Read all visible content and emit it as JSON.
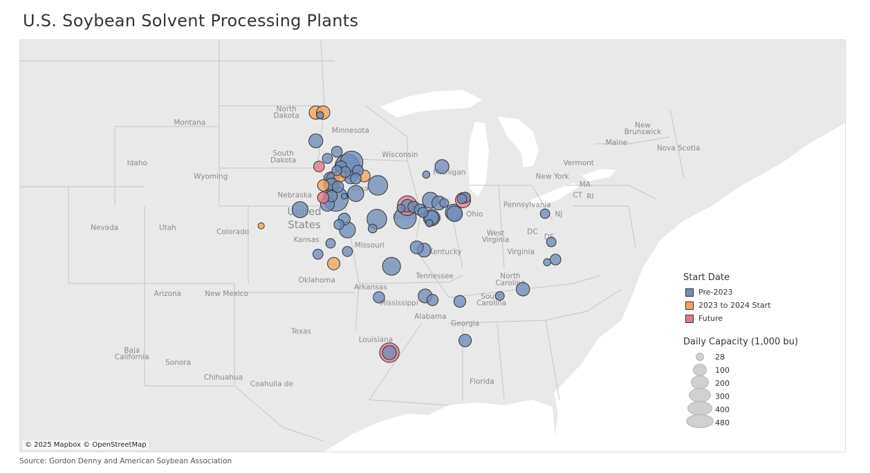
{
  "title": "U.S. Soybean Solvent Processing Plants",
  "source": "Source: Gordon Denny and American Soybean Association",
  "attribution": "© 2025 Mapbox © OpenStreetMap",
  "colors": {
    "pre2023": "#6f8db8",
    "start2023_2024": "#f3a45a",
    "future": "#e47a86",
    "land": "#e9e9e9",
    "water": "#ffffff",
    "border": "#c4c4c4"
  },
  "legend": {
    "color_title": "Start Date",
    "categories": [
      {
        "key": "pre2023",
        "label": "Pre-2023"
      },
      {
        "key": "start2023_2024",
        "label": "2023 to 2024 Start"
      },
      {
        "key": "future",
        "label": "Future"
      }
    ],
    "size_title": "Daily Capacity (1,000 bu)",
    "size_values": [
      "28",
      "100",
      "200",
      "300",
      "400",
      "480"
    ]
  },
  "map_labels": [
    {
      "text": "North",
      "lon": -100.4,
      "lat": 48.0
    },
    {
      "text": "Dakota",
      "lon": -100.4,
      "lat": 47.5
    },
    {
      "text": "Montana",
      "lon": -109.6,
      "lat": 47.0
    },
    {
      "text": "Minnesota",
      "lon": -94.3,
      "lat": 46.4
    },
    {
      "text": "South",
      "lon": -100.7,
      "lat": 44.7
    },
    {
      "text": "Dakota",
      "lon": -100.7,
      "lat": 44.2
    },
    {
      "text": "Wisconsin",
      "lon": -89.6,
      "lat": 44.6
    },
    {
      "text": "Idaho",
      "lon": -114.6,
      "lat": 44.0
    },
    {
      "text": "Wyoming",
      "lon": -107.6,
      "lat": 43.0
    },
    {
      "text": "Michigan",
      "lon": -84.9,
      "lat": 43.3
    },
    {
      "text": "Vermont",
      "lon": -72.6,
      "lat": 44.0
    },
    {
      "text": "New York",
      "lon": -75.1,
      "lat": 43.0
    },
    {
      "text": "Maine",
      "lon": -69.0,
      "lat": 45.5
    },
    {
      "text": "New",
      "lon": -66.5,
      "lat": 46.8
    },
    {
      "text": "Brunswick",
      "lon": -66.5,
      "lat": 46.3
    },
    {
      "text": "Nova Scotia",
      "lon": -63.1,
      "lat": 45.1
    },
    {
      "text": "MA",
      "lon": -72.0,
      "lat": 42.4
    },
    {
      "text": "CT",
      "lon": -72.7,
      "lat": 41.6
    },
    {
      "text": "RI",
      "lon": -71.5,
      "lat": 41.5
    },
    {
      "text": "Iowa",
      "lon": -93.4,
      "lat": 42.1
    },
    {
      "text": "Nebraska",
      "lon": -99.6,
      "lat": 41.6
    },
    {
      "text": "Pennsylvania",
      "lon": -77.5,
      "lat": 40.9
    },
    {
      "text": "NJ",
      "lon": -74.5,
      "lat": 40.2
    },
    {
      "text": "Ohio",
      "lon": -82.5,
      "lat": 40.2
    },
    {
      "text": "Illinois",
      "lon": -89.2,
      "lat": 40.0
    },
    {
      "text": "Ind",
      "lon": -86.2,
      "lat": 39.9
    },
    {
      "text": "Nevada",
      "lon": -117.7,
      "lat": 39.2
    },
    {
      "text": "Utah",
      "lon": -111.7,
      "lat": 39.2
    },
    {
      "text": "Colorado",
      "lon": -105.5,
      "lat": 38.9
    },
    {
      "text": "DC",
      "lon": -77.0,
      "lat": 38.9
    },
    {
      "text": "DE",
      "lon": -75.4,
      "lat": 38.5
    },
    {
      "text": "West",
      "lon": -80.5,
      "lat": 38.8
    },
    {
      "text": "Virginia",
      "lon": -80.5,
      "lat": 38.3
    },
    {
      "text": "Kansas",
      "lon": -98.5,
      "lat": 38.3
    },
    {
      "text": "Missouri",
      "lon": -92.5,
      "lat": 37.9
    },
    {
      "text": "Kentucky",
      "lon": -85.3,
      "lat": 37.4
    },
    {
      "text": "Virginia",
      "lon": -78.1,
      "lat": 37.4
    },
    {
      "text": "Tennessee",
      "lon": -86.3,
      "lat": 35.6
    },
    {
      "text": "North",
      "lon": -79.1,
      "lat": 35.6
    },
    {
      "text": "Carolina",
      "lon": -79.1,
      "lat": 35.1
    },
    {
      "text": "Oklahoma",
      "lon": -97.5,
      "lat": 35.3
    },
    {
      "text": "Arkansas",
      "lon": -92.4,
      "lat": 34.8
    },
    {
      "text": "South",
      "lon": -80.9,
      "lat": 34.1
    },
    {
      "text": "Carolina",
      "lon": -80.9,
      "lat": 33.6
    },
    {
      "text": "Arizona",
      "lon": -111.7,
      "lat": 34.3
    },
    {
      "text": "New Mexico",
      "lon": -106.1,
      "lat": 34.3
    },
    {
      "text": "Mississippi",
      "lon": -89.7,
      "lat": 33.6
    },
    {
      "text": "Alabama",
      "lon": -86.7,
      "lat": 32.6
    },
    {
      "text": "Georgia",
      "lon": -83.4,
      "lat": 32.1
    },
    {
      "text": "Texas",
      "lon": -99.0,
      "lat": 31.5
    },
    {
      "text": "Louisiana",
      "lon": -91.9,
      "lat": 30.9
    },
    {
      "text": "Baja",
      "lon": -115.1,
      "lat": 30.1
    },
    {
      "text": "California",
      "lon": -115.1,
      "lat": 29.6
    },
    {
      "text": "Sonora",
      "lon": -110.7,
      "lat": 29.2
    },
    {
      "text": "Chihuahua",
      "lon": -106.4,
      "lat": 28.1
    },
    {
      "text": "Coahuila de",
      "lon": -101.8,
      "lat": 27.6
    },
    {
      "text": "Florida",
      "lon": -81.8,
      "lat": 27.8
    }
  ],
  "country_label": {
    "line1": "United",
    "line2": "States",
    "lon": -98.7,
    "lat": 40.3
  },
  "plants": [
    {
      "lon": -97.6,
      "lat": 47.9,
      "cap": 140,
      "cat": "start2023_2024"
    },
    {
      "lon": -96.9,
      "lat": 47.9,
      "cap": 140,
      "cat": "start2023_2024"
    },
    {
      "lon": -97.2,
      "lat": 47.7,
      "cap": 40,
      "cat": "pre2023"
    },
    {
      "lon": -97.6,
      "lat": 45.8,
      "cap": 150,
      "cat": "pre2023"
    },
    {
      "lon": -95.6,
      "lat": 45.0,
      "cap": 90,
      "cat": "pre2023"
    },
    {
      "lon": -96.5,
      "lat": 44.5,
      "cap": 80,
      "cat": "pre2023"
    },
    {
      "lon": -97.3,
      "lat": 43.9,
      "cap": 90,
      "cat": "future"
    },
    {
      "lon": -94.2,
      "lat": 44.2,
      "cap": 400,
      "cat": "pre2023"
    },
    {
      "lon": -94.6,
      "lat": 43.9,
      "cap": 480,
      "cat": "pre2023"
    },
    {
      "lon": -95.2,
      "lat": 43.9,
      "cap": 100,
      "cat": "pre2023"
    },
    {
      "lon": -95.6,
      "lat": 43.6,
      "cap": 80,
      "cat": "pre2023"
    },
    {
      "lon": -94.8,
      "lat": 43.5,
      "cap": 90,
      "cat": "pre2023"
    },
    {
      "lon": -93.6,
      "lat": 43.6,
      "cap": 90,
      "cat": "pre2023"
    },
    {
      "lon": -95.3,
      "lat": 43.2,
      "cap": 110,
      "cat": "start2023_2024"
    },
    {
      "lon": -96.2,
      "lat": 43.0,
      "cap": 140,
      "cat": "pre2023"
    },
    {
      "lon": -96.0,
      "lat": 43.0,
      "cap": 120,
      "cat": "pre2023"
    },
    {
      "lon": -94.3,
      "lat": 43.1,
      "cap": 130,
      "cat": "pre2023"
    },
    {
      "lon": -93.8,
      "lat": 43.0,
      "cap": 90,
      "cat": "pre2023"
    },
    {
      "lon": -93.0,
      "lat": 43.2,
      "cap": 110,
      "cat": "start2023_2024"
    },
    {
      "lon": -96.9,
      "lat": 42.5,
      "cap": 100,
      "cat": "start2023_2024"
    },
    {
      "lon": -95.5,
      "lat": 42.4,
      "cap": 100,
      "cat": "pre2023"
    },
    {
      "lon": -91.7,
      "lat": 42.5,
      "cap": 300,
      "cat": "pre2023"
    },
    {
      "lon": -93.8,
      "lat": 41.9,
      "cap": 200,
      "cat": "pre2023"
    },
    {
      "lon": -94.9,
      "lat": 41.7,
      "cap": 28,
      "cat": "pre2023"
    },
    {
      "lon": -96.1,
      "lat": 41.7,
      "cap": 100,
      "cat": "pre2023"
    },
    {
      "lon": -95.7,
      "lat": 41.5,
      "cap": 480,
      "cat": "pre2023"
    },
    {
      "lon": -96.9,
      "lat": 41.6,
      "cap": 100,
      "cat": "future"
    },
    {
      "lon": -96.5,
      "lat": 41.1,
      "cap": 150,
      "cat": "pre2023"
    },
    {
      "lon": -99.1,
      "lat": 40.7,
      "cap": 200,
      "cat": "pre2023"
    },
    {
      "lon": -94.9,
      "lat": 40.0,
      "cap": 110,
      "cat": "pre2023"
    },
    {
      "lon": -95.4,
      "lat": 39.6,
      "cap": 80,
      "cat": "pre2023"
    },
    {
      "lon": -94.6,
      "lat": 39.2,
      "cap": 200,
      "cat": "pre2023"
    },
    {
      "lon": -91.8,
      "lat": 40.0,
      "cap": 300,
      "cat": "pre2023"
    },
    {
      "lon": -92.2,
      "lat": 39.3,
      "cap": 60,
      "cat": "pre2023"
    },
    {
      "lon": -96.2,
      "lat": 38.2,
      "cap": 70,
      "cat": "pre2023"
    },
    {
      "lon": -97.4,
      "lat": 37.4,
      "cap": 80,
      "cat": "pre2023"
    },
    {
      "lon": -94.6,
      "lat": 37.6,
      "cap": 80,
      "cat": "pre2023"
    },
    {
      "lon": -95.9,
      "lat": 36.7,
      "cap": 120,
      "cat": "start2023_2024"
    },
    {
      "lon": -102.8,
      "lat": 39.5,
      "cap": 30,
      "cat": "start2023_2024"
    },
    {
      "lon": -89.1,
      "lat": 40.1,
      "cap": 380,
      "cat": "pre2023"
    },
    {
      "lon": -88.9,
      "lat": 41.0,
      "cap": 300,
      "cat": "future"
    },
    {
      "lon": -88.9,
      "lat": 41.0,
      "cap": 120,
      "cat": "pre2023"
    },
    {
      "lon": -89.5,
      "lat": 40.8,
      "cap": 50,
      "cat": "pre2023"
    },
    {
      "lon": -88.3,
      "lat": 40.9,
      "cap": 100,
      "cat": "pre2023"
    },
    {
      "lon": -87.7,
      "lat": 40.7,
      "cap": 100,
      "cat": "pre2023"
    },
    {
      "lon": -87.4,
      "lat": 40.5,
      "cap": 80,
      "cat": "pre2023"
    },
    {
      "lon": -86.7,
      "lat": 41.4,
      "cap": 200,
      "cat": "pre2023"
    },
    {
      "lon": -85.9,
      "lat": 41.2,
      "cap": 150,
      "cat": "pre2023"
    },
    {
      "lon": -85.4,
      "lat": 41.2,
      "cap": 60,
      "cat": "pre2023"
    },
    {
      "lon": -84.5,
      "lat": 40.5,
      "cap": 210,
      "cat": "pre2023"
    },
    {
      "lon": -86.6,
      "lat": 40.1,
      "cap": 210,
      "cat": "pre2023"
    },
    {
      "lon": -86.6,
      "lat": 40.1,
      "cap": 150,
      "cat": "pre2023"
    },
    {
      "lon": -86.8,
      "lat": 39.7,
      "cap": 40,
      "cat": "pre2023"
    },
    {
      "lon": -83.6,
      "lat": 41.4,
      "cap": 180,
      "cat": "future"
    },
    {
      "lon": -83.7,
      "lat": 41.5,
      "cap": 70,
      "cat": "pre2023"
    },
    {
      "lon": -83.4,
      "lat": 41.6,
      "cap": 90,
      "cat": "pre2023"
    },
    {
      "lon": -85.6,
      "lat": 43.9,
      "cap": 150,
      "cat": "pre2023"
    },
    {
      "lon": -87.1,
      "lat": 43.3,
      "cap": 40,
      "cat": "pre2023"
    },
    {
      "lon": -75.8,
      "lat": 40.4,
      "cap": 70,
      "cat": "pre2023"
    },
    {
      "lon": -75.2,
      "lat": 38.3,
      "cap": 70,
      "cat": "pre2023"
    },
    {
      "lon": -74.8,
      "lat": 37.0,
      "cap": 90,
      "cat": "pre2023"
    },
    {
      "lon": -75.6,
      "lat": 36.8,
      "cap": 40,
      "cat": "pre2023"
    },
    {
      "lon": -88.0,
      "lat": 37.9,
      "cap": 130,
      "cat": "pre2023"
    },
    {
      "lon": -87.3,
      "lat": 37.7,
      "cap": 150,
      "cat": "pre2023"
    },
    {
      "lon": -90.4,
      "lat": 36.5,
      "cap": 250,
      "cat": "pre2023"
    },
    {
      "lon": -91.6,
      "lat": 34.2,
      "cap": 100,
      "cat": "pre2023"
    },
    {
      "lon": -87.2,
      "lat": 34.3,
      "cap": 150,
      "cat": "pre2023"
    },
    {
      "lon": -86.5,
      "lat": 34.0,
      "cap": 100,
      "cat": "pre2023"
    },
    {
      "lon": -83.9,
      "lat": 33.9,
      "cap": 110,
      "cat": "pre2023"
    },
    {
      "lon": -80.1,
      "lat": 34.3,
      "cap": 60,
      "cat": "pre2023"
    },
    {
      "lon": -77.9,
      "lat": 34.8,
      "cap": 140,
      "cat": "pre2023"
    },
    {
      "lon": -83.4,
      "lat": 31.0,
      "cap": 120,
      "cat": "pre2023"
    },
    {
      "lon": -90.6,
      "lat": 30.1,
      "cap": 300,
      "cat": "future"
    },
    {
      "lon": -90.6,
      "lat": 30.1,
      "cap": 150,
      "cat": "pre2023"
    },
    {
      "lon": -96.1,
      "lat": 42.6,
      "cap": 200,
      "cat": "pre2023"
    },
    {
      "lon": -96.1,
      "lat": 42.6,
      "cap": 110,
      "cat": "pre2023"
    },
    {
      "lon": -84.4,
      "lat": 40.4,
      "cap": 190,
      "cat": "pre2023"
    }
  ]
}
